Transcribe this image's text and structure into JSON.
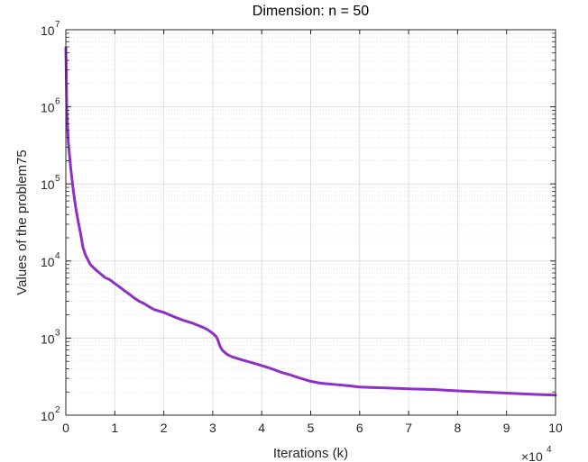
{
  "chart_data": {
    "type": "line",
    "title": "Dimension: n = 50",
    "xlabel": "Iterations (k)",
    "ylabel": "Values of the problem75",
    "x_multiplier_label": "×10",
    "x_multiplier_exp": "4",
    "yscale": "log",
    "xlim": [
      0,
      100000
    ],
    "ylim": [
      100,
      10000000
    ],
    "grid": true,
    "minor_grid": true,
    "xticks": [
      0,
      10000,
      20000,
      30000,
      40000,
      50000,
      60000,
      70000,
      80000,
      90000,
      100000
    ],
    "xtick_labels": [
      "0",
      "1",
      "2",
      "3",
      "4",
      "5",
      "6",
      "7",
      "8",
      "9",
      "10"
    ],
    "yticks": [
      100,
      1000,
      10000,
      100000,
      1000000,
      10000000
    ],
    "ytick_bases": [
      "10",
      "10",
      "10",
      "10",
      "10",
      "10"
    ],
    "ytick_exps": [
      "2",
      "3",
      "4",
      "5",
      "6",
      "7"
    ],
    "series": [
      {
        "color": "#8e2fc9",
        "x": [
          0,
          200,
          500,
          1000,
          1500,
          2000,
          2500,
          3000,
          3500,
          4000,
          5000,
          6000,
          7000,
          8000,
          9000,
          10000,
          11000,
          12000,
          13000,
          14000,
          15000,
          16000,
          17000,
          18000,
          19000,
          20000,
          22000,
          24000,
          26000,
          28000,
          29000,
          30000,
          30700,
          31000,
          31500,
          32000,
          33000,
          34000,
          36000,
          38000,
          40000,
          42000,
          44000,
          46000,
          48000,
          50000,
          52000,
          55000,
          58000,
          60000,
          63000,
          66000,
          70000,
          75000,
          80000,
          85000,
          90000,
          95000,
          100000
        ],
        "y": [
          5800000,
          900000,
          350000,
          160000,
          85000,
          50000,
          33000,
          23000,
          15000,
          12000,
          9000,
          7800,
          6900,
          6100,
          5700,
          5100,
          4600,
          4100,
          3700,
          3300,
          3000,
          2800,
          2550,
          2350,
          2250,
          2150,
          1900,
          1700,
          1550,
          1380,
          1280,
          1150,
          1050,
          960,
          780,
          690,
          610,
          570,
          520,
          480,
          440,
          400,
          360,
          330,
          300,
          275,
          260,
          250,
          240,
          232,
          228,
          225,
          220,
          215,
          207,
          200,
          193,
          187,
          182
        ]
      }
    ]
  }
}
